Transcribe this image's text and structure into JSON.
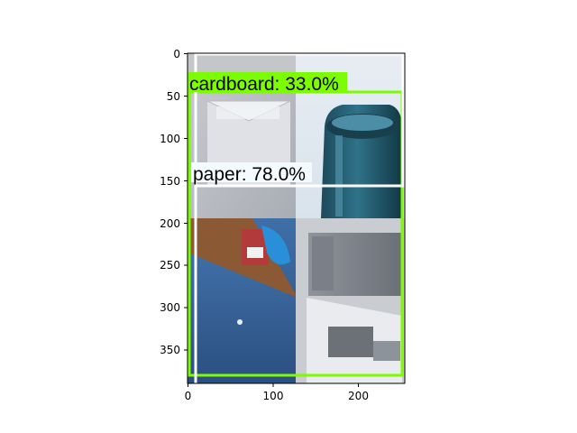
{
  "axes": {
    "x_ticks": [
      "0",
      "100",
      "200"
    ],
    "y_ticks": [
      "0",
      "50",
      "100",
      "150",
      "200",
      "250",
      "300",
      "350"
    ]
  },
  "detections": [
    {
      "label": "cardboard: 33.0%",
      "box_color": "#7cfc00",
      "label_bg": "#7cfc00"
    },
    {
      "label": "paper: 78.0%",
      "box_color": "#ffffff",
      "label_bg": "#f4fbff"
    }
  ],
  "image_tiles": [
    {
      "name": "envelope-tile",
      "description": "white envelope on grey surface"
    },
    {
      "name": "glass-bottle-tile",
      "description": "dark teal glass bottle neck"
    },
    {
      "name": "cardboard-box-tile",
      "description": "blue printed cardboard box"
    },
    {
      "name": "paper-sheets-tile",
      "description": "grey printed paper sheets"
    }
  ]
}
